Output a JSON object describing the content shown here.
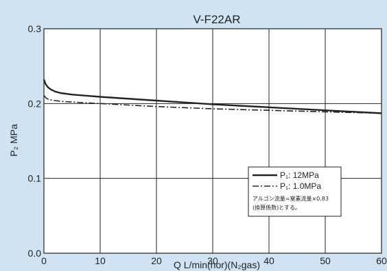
{
  "chart_data": {
    "type": "line",
    "title": "V-F22AR",
    "xlabel": "Q  L/min(nor)(N₂gas)",
    "ylabel": "P₂  MPa",
    "xlim": [
      0,
      60
    ],
    "ylim": [
      0.0,
      0.3
    ],
    "x_ticks": [
      "0",
      "10",
      "20",
      "30",
      "40",
      "50",
      "60"
    ],
    "y_ticks": [
      "0.0",
      "0.1",
      "0.2",
      "0.3"
    ],
    "grid": true,
    "legend_position": "right",
    "series": [
      {
        "name": "P₁: 12MPa",
        "style": "solid",
        "x": [
          0,
          0.3,
          0.7,
          1.2,
          2,
          3,
          5,
          10,
          20,
          30,
          40,
          50,
          60
        ],
        "y": [
          0.232,
          0.226,
          0.222,
          0.219,
          0.216,
          0.214,
          0.212,
          0.209,
          0.204,
          0.199,
          0.195,
          0.191,
          0.187
        ]
      },
      {
        "name": "P₁: 1.0MPa",
        "style": "dashdot",
        "x": [
          0,
          0.3,
          0.7,
          1.2,
          2,
          3,
          5,
          10,
          20,
          30,
          40,
          50,
          60
        ],
        "y": [
          0.211,
          0.208,
          0.206,
          0.205,
          0.204,
          0.203,
          0.202,
          0.2,
          0.196,
          0.193,
          0.191,
          0.189,
          0.187
        ]
      }
    ],
    "note_lines": [
      "アルゴン流量=窒素流量×0.83",
      "(換算係数)とする。"
    ]
  },
  "colors": {
    "background": "#cfe3f3",
    "plot_background": "#ffffff",
    "grid": "#222222",
    "line": "#222222"
  }
}
